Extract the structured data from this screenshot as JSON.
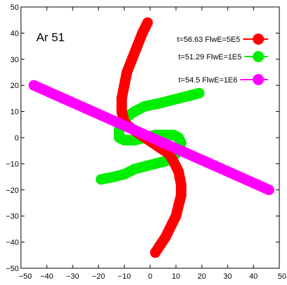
{
  "chart_data": {
    "type": "line",
    "title": "",
    "xlabel": "",
    "ylabel": "",
    "xlim": [
      -50,
      50
    ],
    "ylim": [
      -50,
      50
    ],
    "xticks": [
      -50,
      -40,
      -30,
      -20,
      -10,
      0,
      10,
      20,
      30,
      40,
      50
    ],
    "yticks": [
      -50,
      -40,
      -30,
      -20,
      -10,
      0,
      10,
      20,
      30,
      40,
      50
    ],
    "xtick_labels": [
      "-50",
      "-40",
      "-30",
      "-20",
      "-10",
      "0",
      "10",
      "20",
      "30",
      "40",
      "50"
    ],
    "ytick_labels": [
      "-50",
      "-40",
      "-30",
      "-20",
      "-10",
      "0",
      "10",
      "20",
      "30",
      "40",
      "50"
    ],
    "grid": false,
    "legend_position": "top-right",
    "annotation": "Ar 51",
    "series": [
      {
        "name": "t=56.63 FlwE=5E5",
        "color": "#ff0000",
        "x": [
          -1,
          -3,
          -5,
          -7,
          -9,
          -10,
          -11,
          -11,
          -10,
          -8,
          -5,
          -2,
          1,
          4,
          7,
          9,
          11,
          12,
          12,
          11,
          10,
          8,
          6,
          4,
          2
        ],
        "y": [
          44,
          40,
          35,
          30,
          25,
          20,
          15,
          10,
          6,
          4,
          2,
          0,
          -2,
          -4,
          -6,
          -9,
          -13,
          -18,
          -22,
          -26,
          -30,
          -34,
          -38,
          -41,
          -44
        ]
      },
      {
        "name": "t=51.29 FlwE=1E5",
        "color": "#00ee00",
        "x": [
          19,
          15,
          11,
          7,
          3,
          -2,
          -6,
          -9,
          -11,
          -12,
          -12,
          -10,
          -6,
          -2,
          2,
          6,
          9,
          11,
          12,
          11,
          9,
          6,
          2,
          -2,
          -6,
          -10,
          -14,
          -19
        ],
        "y": [
          17,
          16,
          15,
          14,
          13,
          12,
          10,
          8,
          6,
          3,
          0,
          -1,
          -1,
          0,
          1,
          1,
          1,
          0,
          -2,
          -5,
          -7,
          -9,
          -10,
          -11,
          -12,
          -14,
          -15,
          -16
        ]
      },
      {
        "name": "t=54.5 FlwE=1E6",
        "color": "#ff00ff",
        "x": [
          -45,
          46
        ],
        "y": [
          20,
          -20
        ]
      }
    ]
  }
}
